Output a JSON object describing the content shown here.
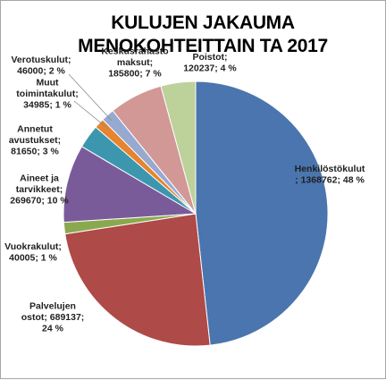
{
  "chart_data": {
    "type": "pie",
    "title": "KULUJEN JAKAUMA MENOKOHTEITTAIN  TA 2017",
    "title_lines": [
      "KULUJEN JAKAUMA",
      "MENOKOHTEITTAIN  TA 2017"
    ],
    "start": "12 o'clock, clockwise",
    "slices": [
      {
        "label": "Henkilöstökulut",
        "value": 1368762,
        "percent": "48 %",
        "color": "#4a75ae",
        "text": [
          "Henkilöstökulut",
          "; 1368762; 48 %"
        ]
      },
      {
        "label": "Palvelujen ostot",
        "value": 689137,
        "percent": "24 %",
        "color": "#ae4a47",
        "text": [
          "Palvelujen",
          "ostot; 689137;",
          "24 %"
        ]
      },
      {
        "label": "Vuokrakulut",
        "value": 40005,
        "percent": "1 %",
        "color": "#8aa94f",
        "text": [
          "Vuokrakulut;",
          "40005; 1 %"
        ]
      },
      {
        "label": "Aineet ja tarvikkeet",
        "value": 269670,
        "percent": "10 %",
        "color": "#7a5b9a",
        "text": [
          "Aineet ja",
          "tarvikkeet;",
          "269670; 10 %"
        ]
      },
      {
        "label": "Annetut avustukset",
        "value": 81650,
        "percent": "3 %",
        "color": "#3c97ae",
        "text": [
          "Annetut",
          "avustukset;",
          "81650; 3 %"
        ]
      },
      {
        "label": "Muut toimintakulut",
        "value": 34985,
        "percent": "1 %",
        "color": "#e6842f",
        "text": [
          "Muut",
          "toimintakulut;",
          "34985; 1 %"
        ]
      },
      {
        "label": "Verotuskulut",
        "value": 46000,
        "percent": "2 %",
        "color": "#96a9d0",
        "text": [
          "Verotuskulut;",
          "46000; 2 %"
        ]
      },
      {
        "label": "Keskusrahasto maksut",
        "value": 185800,
        "percent": "7 %",
        "color": "#d29896",
        "text": [
          "Keskusrahasto",
          "maksut;",
          "185800; 7 %"
        ]
      },
      {
        "label": "Poistot",
        "value": 120237,
        "percent": "4 %",
        "color": "#bdd19b",
        "text": [
          "Poistot;",
          "120237; 4 %"
        ]
      }
    ]
  }
}
